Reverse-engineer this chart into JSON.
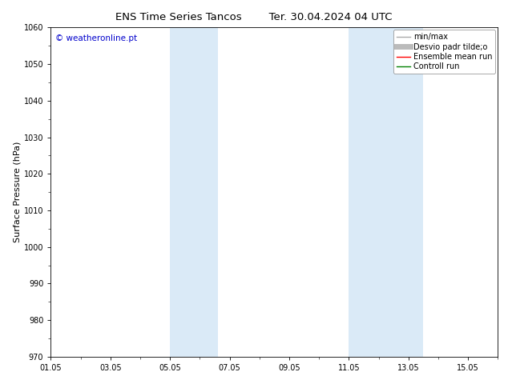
{
  "title_left": "ENS Time Series Tancos",
  "title_right": "Ter. 30.04.2024 04 UTC",
  "ylabel": "Surface Pressure (hPa)",
  "ylim": [
    970,
    1060
  ],
  "yticks": [
    970,
    980,
    990,
    1000,
    1010,
    1020,
    1030,
    1040,
    1050,
    1060
  ],
  "xtick_labels": [
    "01.05",
    "03.05",
    "05.05",
    "07.05",
    "09.05",
    "11.05",
    "13.05",
    "15.05"
  ],
  "xtick_positions": [
    0,
    2,
    4,
    6,
    8,
    10,
    12,
    14
  ],
  "xlim": [
    0,
    15
  ],
  "shaded_regions": [
    {
      "x_start": 4.0,
      "x_end": 5.6,
      "color": "#daeaf7"
    },
    {
      "x_start": 10.0,
      "x_end": 12.5,
      "color": "#daeaf7"
    }
  ],
  "watermark_text": "© weatheronline.pt",
  "watermark_color": "#0000cc",
  "watermark_fontsize": 7.5,
  "legend_entries": [
    {
      "label": "min/max",
      "color": "#aaaaaa",
      "lw": 1.0,
      "ls": "-"
    },
    {
      "label": "Desvio padr tilde;o",
      "color": "#bbbbbb",
      "lw": 5,
      "ls": "-"
    },
    {
      "label": "Ensemble mean run",
      "color": "red",
      "lw": 1.0,
      "ls": "-"
    },
    {
      "label": "Controll run",
      "color": "green",
      "lw": 1.0,
      "ls": "-"
    }
  ],
  "bg_color": "#ffffff",
  "title_fontsize": 9.5,
  "label_fontsize": 8,
  "tick_fontsize": 7,
  "legend_fontsize": 7
}
